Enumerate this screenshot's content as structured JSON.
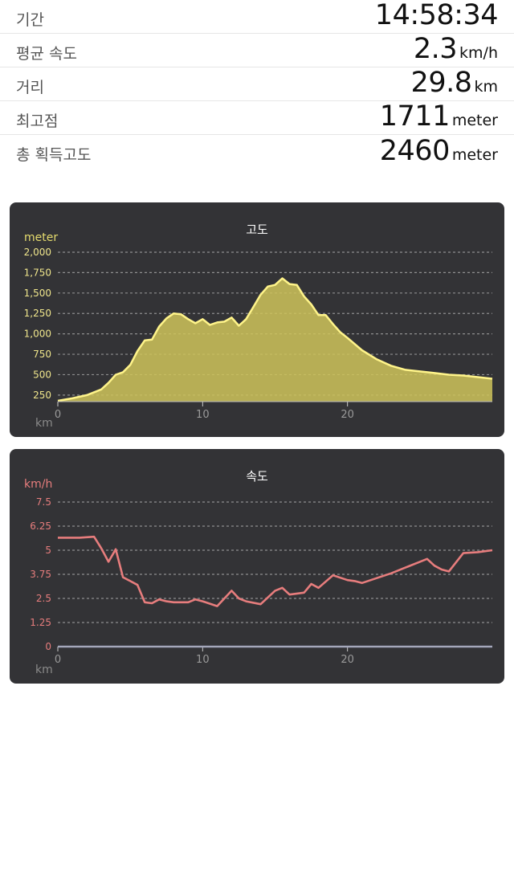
{
  "stats": [
    {
      "label": "기간",
      "value": "14:58:34",
      "unit": ""
    },
    {
      "label": "평균 속도",
      "value": "2.3",
      "unit": "km/h"
    },
    {
      "label": "거리",
      "value": "29.8",
      "unit": "km"
    },
    {
      "label": "최고점",
      "value": "1711",
      "unit": "meter"
    },
    {
      "label": "총 획득고도",
      "value": "2460",
      "unit": "meter"
    }
  ],
  "chart_data": [
    {
      "type": "area",
      "title": "고도",
      "ylabel": "meter",
      "xlabel": "km",
      "x_ticks": [
        0,
        10,
        20
      ],
      "y_ticks": [
        "2,000",
        "1,750",
        "1,500",
        "1,250",
        "1,000",
        "750",
        "500",
        "250"
      ],
      "xlim": [
        0,
        30
      ],
      "ylim": [
        170,
        2000
      ],
      "color": "#e6dc6e",
      "grid": true,
      "x": [
        0,
        1,
        2,
        3,
        3.5,
        4,
        4.5,
        5,
        5.5,
        6,
        6.5,
        7,
        7.5,
        8,
        8.5,
        9,
        9.5,
        10,
        10.5,
        11,
        11.5,
        12,
        12.5,
        13,
        13.5,
        14,
        14.5,
        15,
        15.5,
        16,
        16.5,
        17,
        17.5,
        18,
        18.5,
        19,
        19.5,
        20,
        21,
        22,
        23,
        24,
        25,
        26,
        27,
        28,
        29,
        30
      ],
      "y": [
        180,
        210,
        250,
        320,
        400,
        500,
        530,
        620,
        790,
        920,
        930,
        1090,
        1190,
        1250,
        1240,
        1180,
        1130,
        1180,
        1110,
        1140,
        1150,
        1200,
        1100,
        1180,
        1330,
        1480,
        1580,
        1600,
        1680,
        1610,
        1600,
        1460,
        1360,
        1230,
        1230,
        1120,
        1020,
        950,
        800,
        690,
        610,
        560,
        540,
        520,
        500,
        490,
        470,
        450
      ]
    },
    {
      "type": "line",
      "title": "속도",
      "ylabel": "km/h",
      "xlabel": "km",
      "x_ticks": [
        0,
        10,
        20
      ],
      "y_ticks": [
        "7.5",
        "6.25",
        "5",
        "3.75",
        "2.5",
        "1.25",
        "0"
      ],
      "xlim": [
        0,
        30
      ],
      "ylim": [
        0,
        7.5
      ],
      "color": "#e77d7d",
      "baseline_color": "#8d92b8",
      "grid": true,
      "x": [
        0,
        1.5,
        2.5,
        3,
        3.5,
        4,
        4.5,
        5,
        5.5,
        6,
        6.5,
        7,
        7.5,
        8,
        9,
        9.5,
        10,
        11,
        11.5,
        12,
        12.5,
        13,
        14,
        15,
        15.5,
        16,
        17,
        17.5,
        18,
        19,
        20,
        20.5,
        21,
        22,
        23,
        24,
        25,
        25.5,
        26,
        26.5,
        27,
        28,
        29,
        30
      ],
      "y": [
        5.65,
        5.65,
        5.7,
        5.1,
        4.4,
        5.05,
        3.6,
        3.4,
        3.2,
        2.3,
        2.25,
        2.45,
        2.35,
        2.3,
        2.3,
        2.45,
        2.35,
        2.1,
        2.5,
        2.9,
        2.5,
        2.35,
        2.2,
        2.9,
        3.05,
        2.7,
        2.8,
        3.25,
        3.05,
        3.7,
        3.45,
        3.4,
        3.3,
        3.55,
        3.8,
        4.1,
        4.4,
        4.55,
        4.2,
        4.0,
        3.9,
        4.85,
        4.9,
        5.0
      ]
    }
  ]
}
